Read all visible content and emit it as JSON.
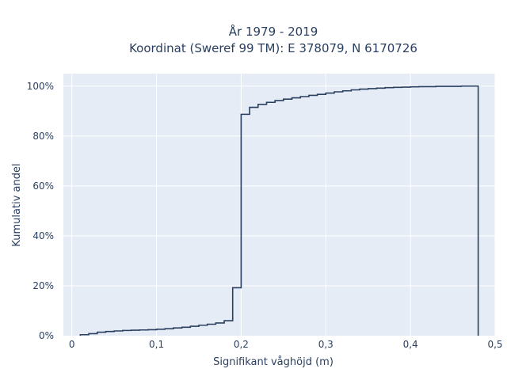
{
  "chart_data": {
    "type": "line",
    "subtype": "empirical-cumulative-step",
    "title_line1": "År 1979 - 2019",
    "title_line2": "Koordinat (Sweref 99 TM): E 378079, N 6170726",
    "xlabel": "Signifikant våghöjd (m)",
    "ylabel": "Kumulativ andel",
    "xlim": [
      -0.01,
      0.5
    ],
    "ylim": [
      0,
      1.05
    ],
    "xticks": [
      {
        "value": 0,
        "label": "0"
      },
      {
        "value": 0.1,
        "label": "0,1"
      },
      {
        "value": 0.2,
        "label": "0,2"
      },
      {
        "value": 0.3,
        "label": "0,3"
      },
      {
        "value": 0.4,
        "label": "0,4"
      },
      {
        "value": 0.5,
        "label": "0,5"
      }
    ],
    "yticks": [
      {
        "value": 0,
        "label": "0%"
      },
      {
        "value": 0.2,
        "label": "20%"
      },
      {
        "value": 0.4,
        "label": "40%"
      },
      {
        "value": 0.6,
        "label": "60%"
      },
      {
        "value": 0.8,
        "label": "80%"
      },
      {
        "value": 1.0,
        "label": "100%"
      }
    ],
    "grid": true,
    "plot_background": "#e5ecf6",
    "line_color": "#2a3f5f",
    "series": [
      {
        "x": [
          0.01,
          0.02,
          0.03,
          0.04,
          0.05,
          0.06,
          0.07,
          0.08,
          0.09,
          0.1,
          0.11,
          0.12,
          0.13,
          0.14,
          0.15,
          0.16,
          0.17,
          0.18,
          0.19,
          0.2,
          0.21,
          0.22,
          0.23,
          0.24,
          0.25,
          0.26,
          0.27,
          0.28,
          0.29,
          0.3,
          0.31,
          0.32,
          0.33,
          0.34,
          0.35,
          0.36,
          0.37,
          0.38,
          0.39,
          0.4,
          0.41,
          0.42,
          0.43,
          0.44,
          0.45,
          0.46,
          0.47,
          0.48
        ],
        "y": [
          0.004,
          0.008,
          0.014,
          0.017,
          0.019,
          0.021,
          0.022,
          0.023,
          0.024,
          0.026,
          0.028,
          0.031,
          0.034,
          0.038,
          0.042,
          0.046,
          0.051,
          0.06,
          0.192,
          0.887,
          0.915,
          0.927,
          0.935,
          0.942,
          0.948,
          0.953,
          0.958,
          0.963,
          0.967,
          0.972,
          0.977,
          0.981,
          0.985,
          0.988,
          0.99,
          0.992,
          0.994,
          0.995,
          0.996,
          0.997,
          0.998,
          0.998,
          0.999,
          0.999,
          0.999,
          1.0,
          1.0,
          1.0
        ]
      }
    ]
  }
}
